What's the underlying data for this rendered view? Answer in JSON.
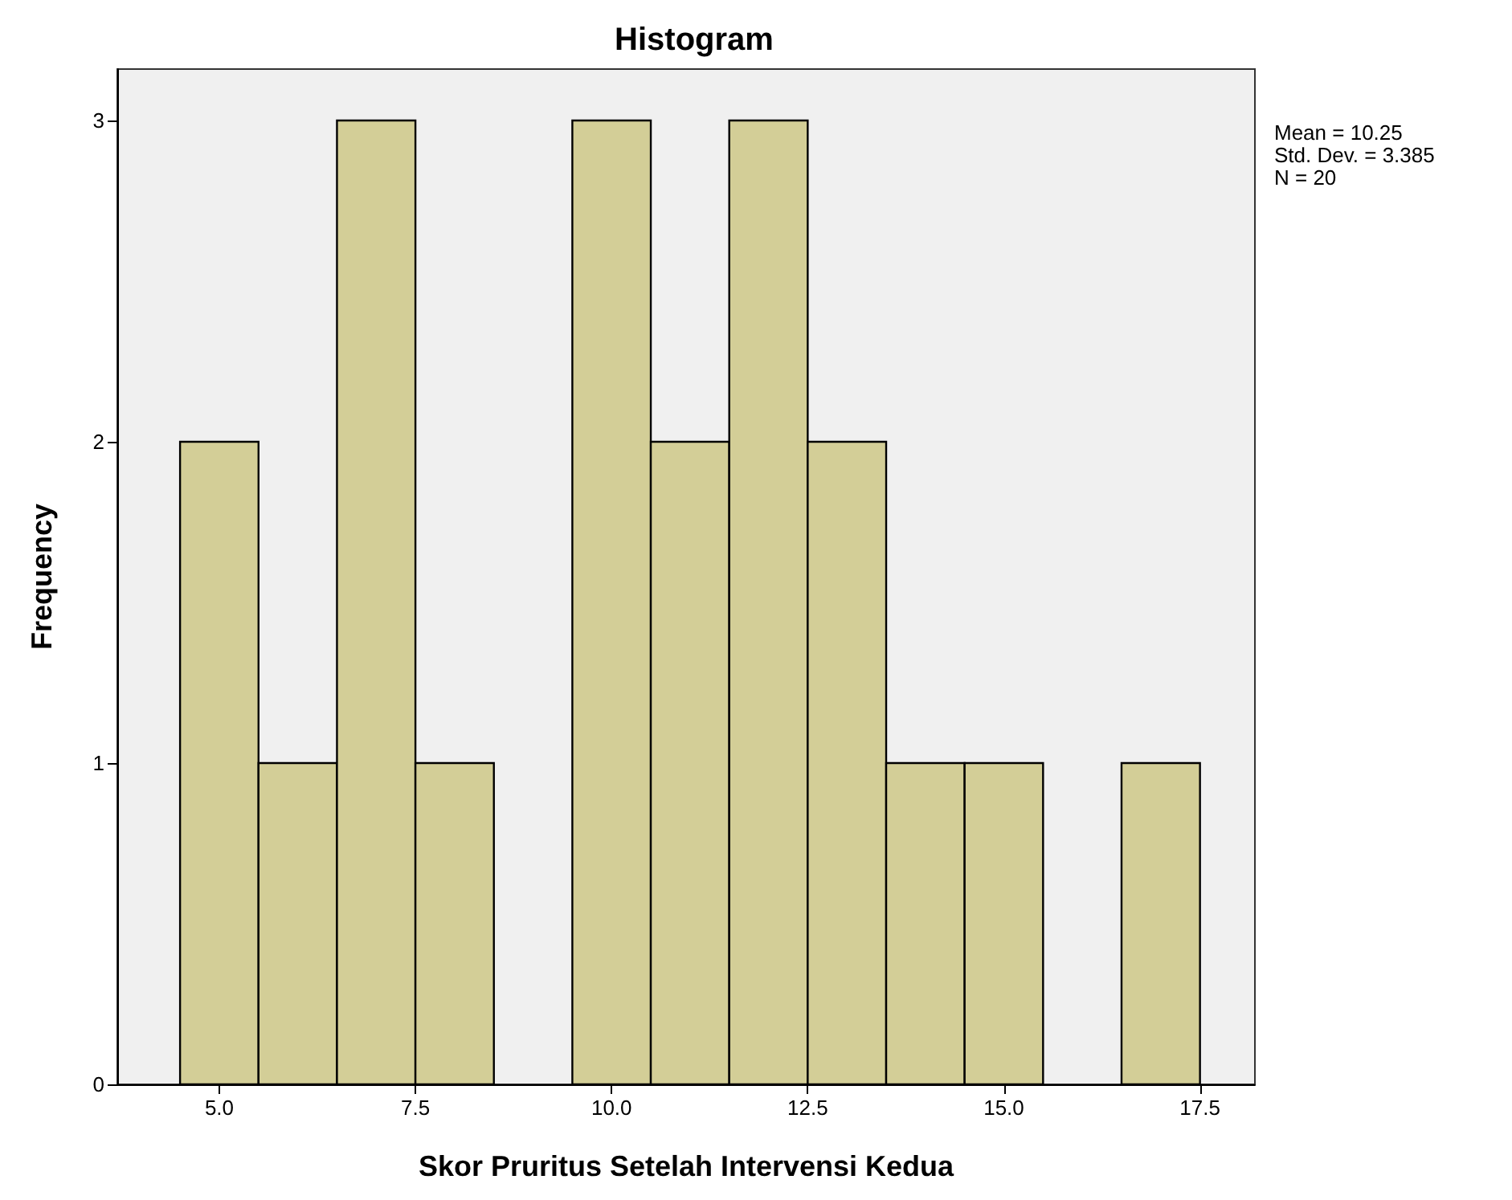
{
  "chart_data": {
    "type": "histogram",
    "title": "Histogram",
    "xlabel": "Skor Pruritus Setelah Intervensi Kedua",
    "ylabel": "Frequency",
    "bins": [
      4.5,
      5.5,
      6.5,
      7.5,
      8.5,
      9.5,
      10.5,
      11.5,
      12.5,
      13.5,
      14.5,
      15.5,
      16.5,
      17.5
    ],
    "values": [
      2,
      1,
      3,
      1,
      0,
      3,
      2,
      3,
      2,
      1,
      1,
      0,
      1
    ],
    "color": "#d3ce97",
    "xlim": [
      3.7,
      18.2
    ],
    "ylim": [
      0,
      3.16
    ],
    "xticks": [
      {
        "value": 5,
        "label": "5.0"
      },
      {
        "value": 7.5,
        "label": "7.5"
      },
      {
        "value": 10,
        "label": "10.0"
      },
      {
        "value": 12.5,
        "label": "12.5"
      },
      {
        "value": 15,
        "label": "15.0"
      },
      {
        "value": 17.5,
        "label": "17.5"
      }
    ],
    "yticks": [
      0,
      1,
      2,
      3
    ],
    "annotations": [
      "Mean = 10.25",
      "Std. Dev. = 3.385",
      "N = 20"
    ]
  }
}
